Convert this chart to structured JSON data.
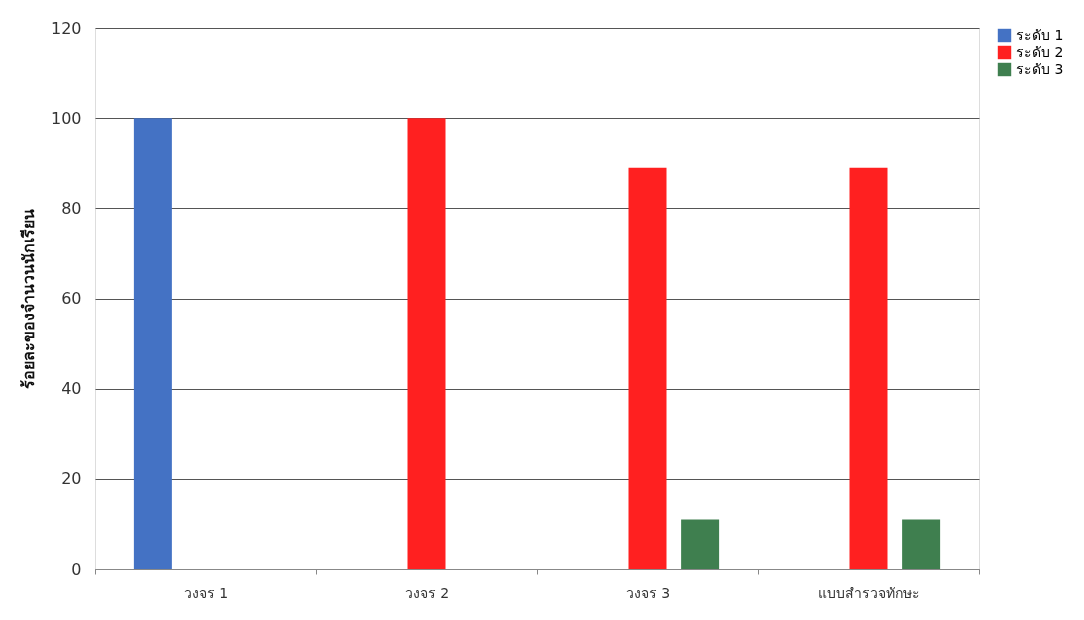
{
  "chart_data": {
    "type": "bar",
    "ylabel": "ร้อยละของจำนวนนักเรียน",
    "categories": [
      "วงจร 1",
      "วงจร 2",
      "วงจร 3",
      "แบบสำรวจทักษะ"
    ],
    "series": [
      {
        "name": "ระดับ 1",
        "color": "#4472c4",
        "values": [
          100,
          null,
          null,
          null
        ]
      },
      {
        "name": "ระดับ 2",
        "color": "#ff2020",
        "values": [
          null,
          100,
          89,
          89
        ]
      },
      {
        "name": "ระดับ 3",
        "color": "#3f7f4f",
        "values": [
          null,
          null,
          11,
          11
        ]
      }
    ],
    "ylim": [
      0,
      120
    ],
    "yticks": [
      0,
      20,
      40,
      60,
      80,
      100,
      120
    ],
    "grid": "y",
    "legend": "right"
  }
}
